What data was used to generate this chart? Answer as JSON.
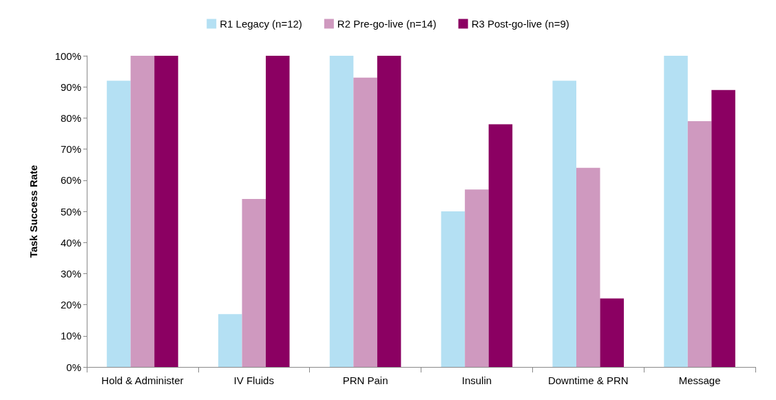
{
  "chart_data": {
    "type": "bar",
    "ylabel": "Task Success Rate",
    "categories": [
      "Hold & Administer",
      "IV Fluids",
      "PRN Pain",
      "Insulin",
      "Downtime & PRN",
      "Message"
    ],
    "series": [
      {
        "name": "R1 Legacy (n=12)",
        "color": "#b4e0f3",
        "values": [
          92,
          17,
          100,
          50,
          92,
          100
        ]
      },
      {
        "name": "R2 Pre-go-live (n=14)",
        "color": "#cf99bf",
        "values": [
          100,
          54,
          93,
          57,
          64,
          79
        ]
      },
      {
        "name": "R3 Post-go-live (n=9)",
        "color": "#8b0062",
        "values": [
          100,
          100,
          100,
          78,
          22,
          89
        ]
      }
    ],
    "ylim": [
      0,
      100
    ],
    "yticks": [
      {
        "value": 0,
        "label": "0%"
      },
      {
        "value": 10,
        "label": "10%"
      },
      {
        "value": 20,
        "label": "20%"
      },
      {
        "value": 30,
        "label": "30%"
      },
      {
        "value": 40,
        "label": "40%"
      },
      {
        "value": 50,
        "label": "50%"
      },
      {
        "value": 60,
        "label": "60%"
      },
      {
        "value": 70,
        "label": "70%"
      },
      {
        "value": 80,
        "label": "80%"
      },
      {
        "value": 90,
        "label": "90%"
      },
      {
        "value": 100,
        "label": "100%"
      }
    ],
    "grid": false,
    "legend": "top"
  }
}
